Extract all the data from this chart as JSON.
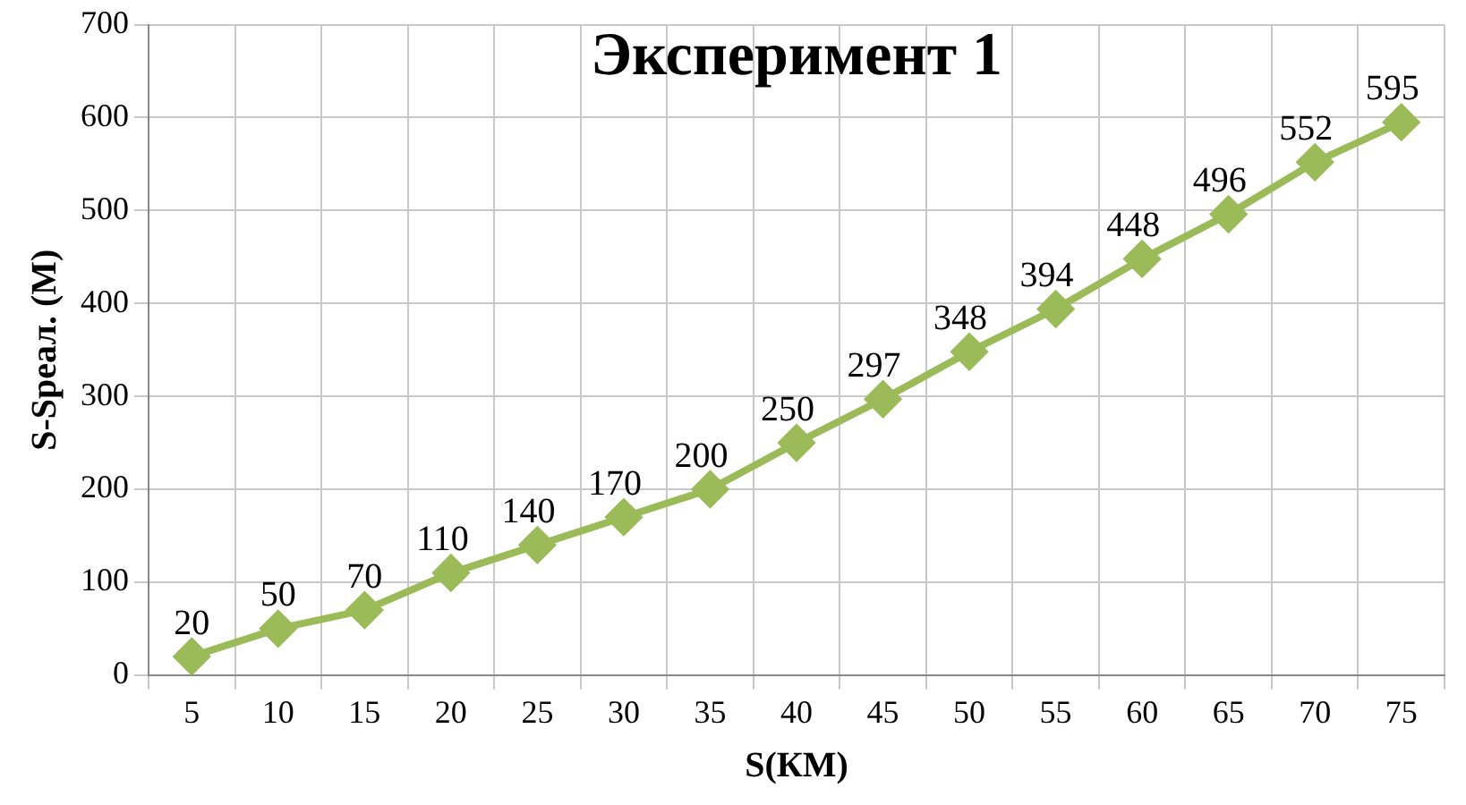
{
  "chart_data": {
    "type": "line",
    "title": "Эксперимент 1",
    "xlabel": "S(КМ)",
    "ylabel": "S-Sреал. (М)",
    "categories": [
      "5",
      "10",
      "15",
      "20",
      "25",
      "30",
      "35",
      "40",
      "45",
      "50",
      "55",
      "60",
      "65",
      "70",
      "75"
    ],
    "series": [
      {
        "color": "#9bbb59",
        "values": [
          20,
          50,
          70,
          110,
          140,
          170,
          200,
          250,
          297,
          348,
          394,
          448,
          496,
          552,
          595
        ]
      }
    ],
    "ylim": [
      0,
      700
    ],
    "yticks": [
      0,
      100,
      200,
      300,
      400,
      500,
      600,
      700
    ],
    "grid": true,
    "legend": false,
    "marker": "diamond",
    "line_style": "solid",
    "data_labels": true
  }
}
